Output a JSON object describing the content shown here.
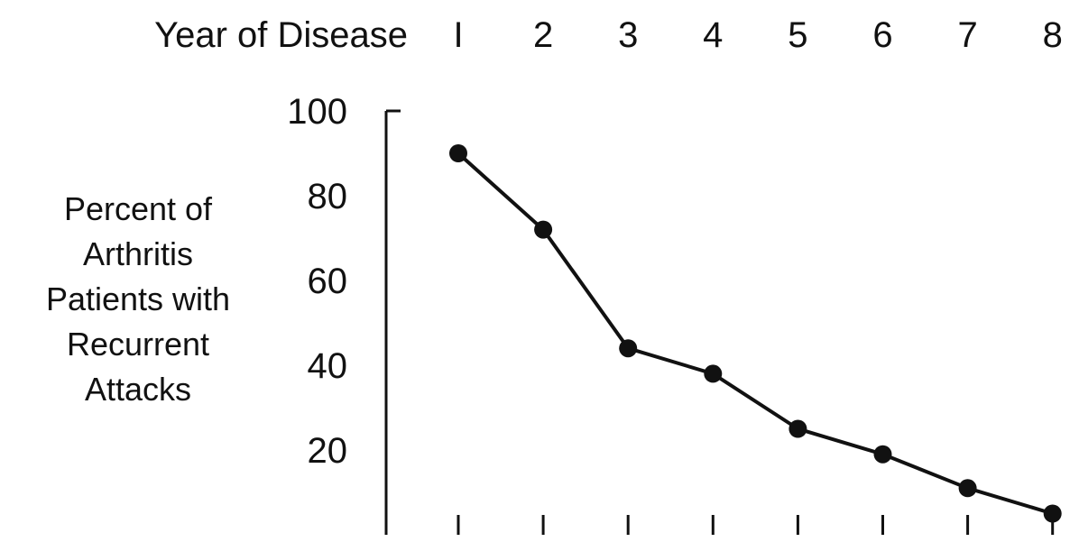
{
  "chart_data": {
    "type": "line",
    "x_axis_label": "Year of Disease",
    "x_axis_position": "top",
    "categories": [
      "I",
      "2",
      "3",
      "4",
      "5",
      "6",
      "7",
      "8"
    ],
    "y_axis_label_lines": [
      "Percent of",
      "Arthritis",
      "Patients with",
      "Recurrent",
      "Attacks"
    ],
    "y_ticks": [
      "100",
      "80",
      "60",
      "40",
      "20"
    ],
    "ylim": [
      0,
      100
    ],
    "grid": false,
    "legend": "none",
    "series": [
      {
        "x": [
          1,
          2,
          3,
          4,
          5,
          6,
          7,
          8
        ],
        "values": [
          90,
          72,
          44,
          38,
          25,
          19,
          11,
          5
        ]
      }
    ],
    "colors": {
      "line": "#111111",
      "marker": "#111111",
      "axis": "#111111",
      "background": "#ffffff"
    }
  }
}
